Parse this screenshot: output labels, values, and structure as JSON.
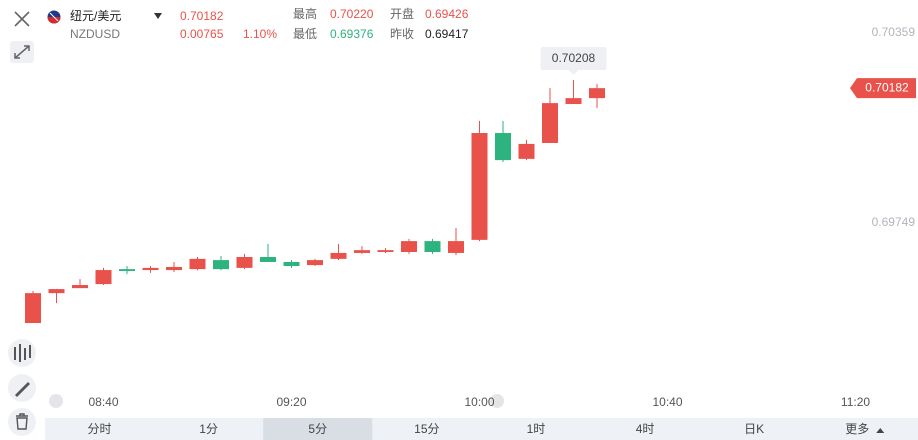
{
  "header": {
    "pair": "纽元/美元",
    "symbol": "NZDUSD",
    "price": "0.70182",
    "change": "0.00765",
    "change_pct": "1.10%",
    "high_label": "最高",
    "high": "0.70220",
    "open_label": "开盘",
    "open": "0.69426",
    "low_label": "最低",
    "low": "0.69376",
    "prev_close_label": "昨收",
    "prev_close": "0.69417"
  },
  "chart_data": {
    "type": "candlestick",
    "color_up": "#e8524a",
    "color_down": "#2db37d",
    "open": [
      0.69428,
      0.69524,
      0.6954,
      0.69553,
      0.69601,
      0.69598,
      0.69598,
      0.69601,
      0.6963,
      0.69605,
      0.6964,
      0.69624,
      0.69614,
      0.69634,
      0.69653,
      0.69656,
      0.69656,
      0.69691,
      0.69653,
      0.69695,
      0.70038,
      0.69955,
      0.70006,
      0.70131,
      0.7015
    ],
    "high": [
      0.69531,
      0.69537,
      0.69569,
      0.69605,
      0.69611,
      0.69611,
      0.69624,
      0.6964,
      0.69643,
      0.6965,
      0.69682,
      0.6963,
      0.69634,
      0.69682,
      0.69675,
      0.69669,
      0.69698,
      0.69698,
      0.69733,
      0.70077,
      0.70077,
      0.70016,
      0.70182,
      0.70208,
      0.70195
    ],
    "low": [
      0.69428,
      0.69492,
      0.6954,
      0.6955,
      0.69585,
      0.69589,
      0.69592,
      0.69598,
      0.69598,
      0.69601,
      0.69624,
      0.69605,
      0.69611,
      0.6963,
      0.6965,
      0.69653,
      0.6965,
      0.6965,
      0.69646,
      0.69691,
      0.69945,
      0.69951,
      0.70006,
      0.70131,
      0.70118
    ],
    "close": [
      0.69524,
      0.69537,
      0.6955,
      0.69598,
      0.69595,
      0.69605,
      0.69608,
      0.69634,
      0.69601,
      0.6964,
      0.69624,
      0.69611,
      0.6963,
      0.69653,
      0.69662,
      0.69662,
      0.69691,
      0.69656,
      0.69691,
      0.70038,
      0.69951,
      0.70003,
      0.70134,
      0.7015,
      0.70182
    ],
    "ylim": [
      0.69213,
      0.70465
    ],
    "yticks": [
      0.69749,
      0.70359
    ],
    "xticks": [
      "08:40",
      "09:20",
      "10:00",
      "10:40",
      "11:20"
    ],
    "last_price": 0.70182
  },
  "tabs": [
    "分时",
    "1分",
    "5分",
    "15分",
    "1时",
    "4时",
    "日K",
    "更多"
  ],
  "selected_tab": 2
}
